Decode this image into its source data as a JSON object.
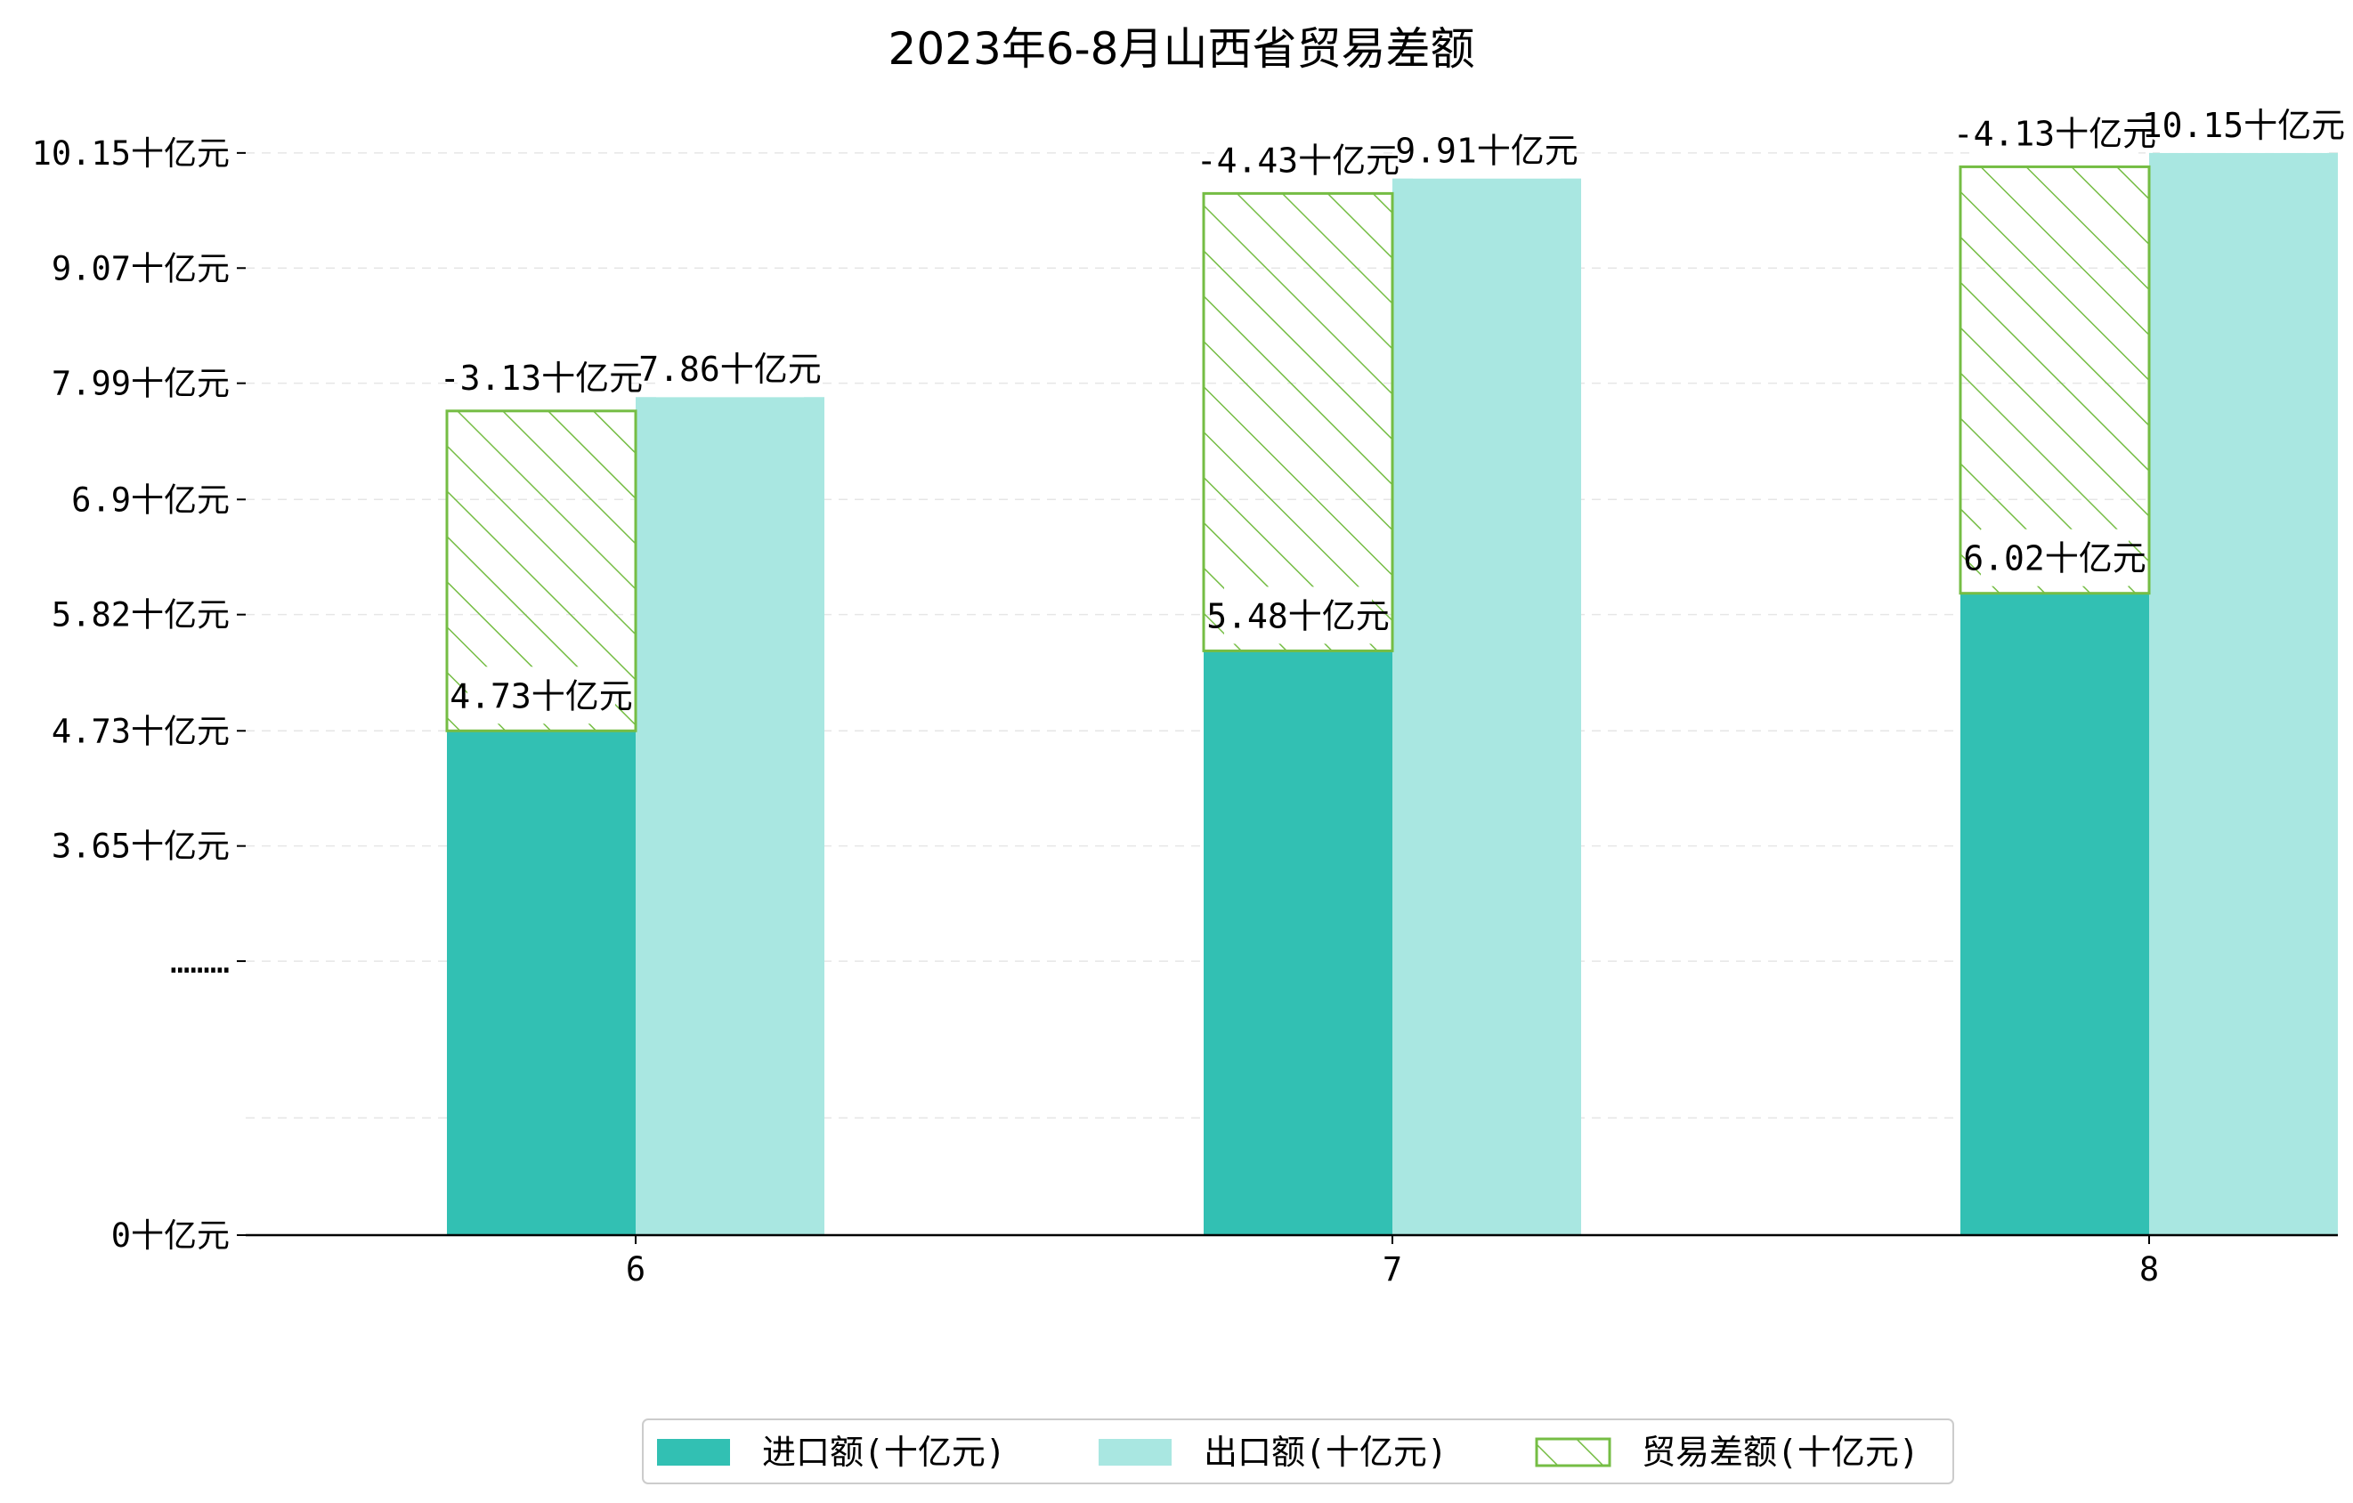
{
  "colors": {
    "import": "#32c0b3",
    "export": "#a9e7e1",
    "balance_stroke": "#75bd44",
    "grid": "#e6e6e6",
    "axis": "#000000",
    "background": "#ffffff"
  },
  "chart_data": {
    "type": "bar",
    "title": "2023年6-8月山西省贸易差额",
    "xlabel": "",
    "ylabel": "",
    "categories": [
      "6",
      "7",
      "8"
    ],
    "series": [
      {
        "name": "进口额(十亿元)",
        "key": "import",
        "values": [
          4.73,
          5.48,
          6.02
        ],
        "labels": [
          "4.73十亿元",
          "5.48十亿元",
          "6.02十亿元"
        ]
      },
      {
        "name": "出口额(十亿元)",
        "key": "export",
        "values": [
          7.86,
          9.91,
          10.15
        ],
        "labels": [
          "7.86十亿元",
          "9.91十亿元",
          "10.15十亿元"
        ]
      },
      {
        "name": "贸易差额(十亿元)",
        "key": "balance",
        "values": [
          -3.13,
          -4.43,
          -4.13
        ],
        "labels": [
          "-3.13十亿元",
          "-4.43十亿元",
          "-4.13十亿元"
        ]
      }
    ],
    "balance_rendering": "hatched segment stacked on import bar up to a level slightly below the export bar top",
    "balance_top_values": [
      7.73,
      9.77,
      10.02
    ],
    "yticks": {
      "values": [
        0,
        1.1,
        2.57,
        3.65,
        4.73,
        5.82,
        6.9,
        7.99,
        9.07,
        10.15
      ],
      "labels": [
        "0十亿元",
        "",
        "………",
        "3.65十亿元",
        "4.73十亿元",
        "5.82十亿元",
        "6.9十亿元",
        "7.99十亿元",
        "9.07十亿元",
        "10.15十亿元"
      ]
    },
    "y_axis_break": true,
    "ylim": [
      0,
      10.9
    ],
    "grid": "horizontal dashed",
    "legend_position": "bottom-center"
  }
}
